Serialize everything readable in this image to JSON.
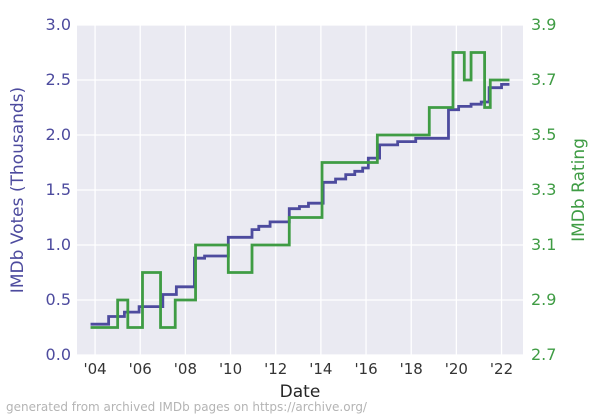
{
  "figure": {
    "xlabel": "Date",
    "ylabel_left": "IMDb Votes (Thousands)",
    "ylabel_right": "IMDb Rating",
    "caption": "generated from archived IMDb pages on https://archive.org/"
  },
  "colors": {
    "votes_line": "#4d4b9e",
    "rating_line": "#3f9c44",
    "plot_bg": "#eaeaf2",
    "grid": "#ffffff",
    "xtick_text": "#343434",
    "caption_text": "#b4b4b4"
  },
  "chart_data": {
    "type": "line",
    "interpolation": "step-post",
    "grid": "on",
    "legend": "none",
    "title": "",
    "xlabel": "Date",
    "x_axis": {
      "range": [
        2003.2,
        2022.95
      ],
      "ticks": [
        {
          "v": 2004,
          "label": "'04"
        },
        {
          "v": 2006,
          "label": "'06"
        },
        {
          "v": 2008,
          "label": "'08"
        },
        {
          "v": 2010,
          "label": "'10"
        },
        {
          "v": 2012,
          "label": "'12"
        },
        {
          "v": 2014,
          "label": "'14"
        },
        {
          "v": 2016,
          "label": "'16"
        },
        {
          "v": 2018,
          "label": "'18"
        },
        {
          "v": 2020,
          "label": "'20"
        },
        {
          "v": 2022,
          "label": "'22"
        }
      ]
    },
    "y_axis_left": {
      "label": "IMDb Votes (Thousands)",
      "range": [
        0.0,
        3.0
      ],
      "ticks": [
        {
          "v": 3.0,
          "label": "3.0"
        },
        {
          "v": 2.5,
          "label": "2.5"
        },
        {
          "v": 2.0,
          "label": "2.0"
        },
        {
          "v": 1.5,
          "label": "1.5"
        },
        {
          "v": 1.0,
          "label": "1.0"
        },
        {
          "v": 0.5,
          "label": "0.5"
        },
        {
          "v": 0.0,
          "label": "0.0"
        }
      ]
    },
    "y_axis_right": {
      "label": "IMDb Rating",
      "range": [
        2.7,
        3.9
      ],
      "ticks": [
        {
          "v": 3.9,
          "label": "3.9"
        },
        {
          "v": 3.7,
          "label": "3.7"
        },
        {
          "v": 3.5,
          "label": "3.5"
        },
        {
          "v": 3.3,
          "label": "3.3"
        },
        {
          "v": 3.1,
          "label": "3.1"
        },
        {
          "v": 2.9,
          "label": "2.9"
        },
        {
          "v": 2.7,
          "label": "2.7"
        }
      ]
    },
    "series": [
      {
        "name": "IMDb Votes (Thousands)",
        "axis": "left",
        "color": "#4d4b9e",
        "end_x": 2022.35,
        "points": [
          [
            2003.8,
            0.28
          ],
          [
            2004.6,
            0.35
          ],
          [
            2005.3,
            0.39
          ],
          [
            2005.95,
            0.44
          ],
          [
            2007.0,
            0.55
          ],
          [
            2007.6,
            0.62
          ],
          [
            2008.4,
            0.88
          ],
          [
            2008.85,
            0.9
          ],
          [
            2009.9,
            1.07
          ],
          [
            2010.95,
            1.14
          ],
          [
            2011.25,
            1.17
          ],
          [
            2011.75,
            1.21
          ],
          [
            2012.6,
            1.33
          ],
          [
            2013.05,
            1.35
          ],
          [
            2013.45,
            1.38
          ],
          [
            2014.1,
            1.57
          ],
          [
            2014.65,
            1.6
          ],
          [
            2015.1,
            1.64
          ],
          [
            2015.5,
            1.67
          ],
          [
            2015.85,
            1.7
          ],
          [
            2016.1,
            1.79
          ],
          [
            2016.6,
            1.91
          ],
          [
            2017.4,
            1.94
          ],
          [
            2018.2,
            1.97
          ],
          [
            2019.65,
            2.23
          ],
          [
            2020.1,
            2.26
          ],
          [
            2020.65,
            2.28
          ],
          [
            2021.1,
            2.3
          ],
          [
            2021.45,
            2.43
          ],
          [
            2022.0,
            2.46
          ]
        ]
      },
      {
        "name": "IMDb Rating",
        "axis": "right",
        "color": "#3f9c44",
        "end_x": 2022.35,
        "points": [
          [
            2003.8,
            2.8
          ],
          [
            2005.0,
            2.9
          ],
          [
            2005.45,
            2.8
          ],
          [
            2006.1,
            3.0
          ],
          [
            2006.9,
            2.8
          ],
          [
            2007.55,
            2.9
          ],
          [
            2008.45,
            3.1
          ],
          [
            2009.9,
            3.0
          ],
          [
            2010.95,
            3.1
          ],
          [
            2012.6,
            3.2
          ],
          [
            2014.05,
            3.4
          ],
          [
            2016.5,
            3.5
          ],
          [
            2018.8,
            3.6
          ],
          [
            2019.85,
            3.8
          ],
          [
            2020.35,
            3.7
          ],
          [
            2020.65,
            3.8
          ],
          [
            2021.25,
            3.6
          ],
          [
            2021.5,
            3.7
          ]
        ]
      }
    ],
    "caption": "generated from archived IMDb pages on https://archive.org/"
  }
}
